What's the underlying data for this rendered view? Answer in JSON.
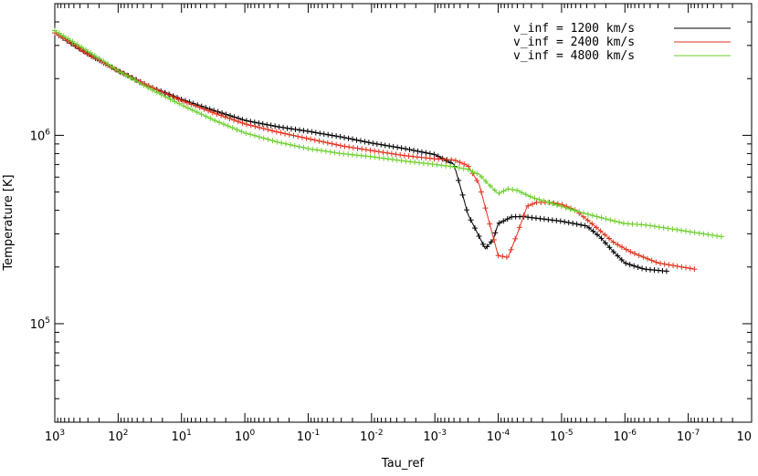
{
  "chart_data": {
    "type": "line",
    "title": "",
    "xlabel": "Tau_ref",
    "ylabel": "Temperature [K]",
    "x_scale": "log",
    "x_reversed": true,
    "y_scale": "log",
    "xlim": [
      1000,
      1e-08
    ],
    "ylim": [
      30000,
      5000000
    ],
    "grid": false,
    "legend_position": "top-right",
    "x_ticks": [
      {
        "base": "10",
        "exp": "3",
        "value": 1000
      },
      {
        "base": "10",
        "exp": "2",
        "value": 100
      },
      {
        "base": "10",
        "exp": "1",
        "value": 10
      },
      {
        "base": "10",
        "exp": "0",
        "value": 1
      },
      {
        "base": "10",
        "exp": "-1",
        "value": 0.1
      },
      {
        "base": "10",
        "exp": "-2",
        "value": 0.01
      },
      {
        "base": "10",
        "exp": "-3",
        "value": 0.001
      },
      {
        "base": "10",
        "exp": "-4",
        "value": 0.0001
      },
      {
        "base": "10",
        "exp": "-5",
        "value": 1e-05
      },
      {
        "base": "10",
        "exp": "-6",
        "value": 1e-06
      },
      {
        "base": "10",
        "exp": "-7",
        "value": 1e-07
      },
      {
        "base": "10",
        "exp": "",
        "value": 1e-08
      }
    ],
    "y_ticks": [
      {
        "base": "10",
        "exp": "5",
        "value": 100000
      },
      {
        "base": "10",
        "exp": "6",
        "value": 1000000
      }
    ],
    "series": [
      {
        "name": "v_inf  =  1200  km/s",
        "color": "#000000",
        "x": [
          1000,
          300,
          100,
          30,
          10,
          3,
          1,
          0.3,
          0.1,
          0.03,
          0.01,
          0.003,
          0.001,
          0.0005,
          0.0004,
          0.0003,
          0.0002,
          0.00016,
          0.00012,
          0.0001,
          6e-05,
          4e-05,
          2e-05,
          1e-05,
          4e-06,
          2.5e-06,
          1.5e-06,
          1e-06,
          5e-07,
          2.2e-07
        ],
        "y": [
          3500000,
          2700000,
          2200000,
          1800000,
          1550000,
          1350000,
          1200000,
          1110000,
          1050000,
          980000,
          910000,
          850000,
          790000,
          700000,
          540000,
          380000,
          290000,
          250000,
          280000,
          340000,
          370000,
          370000,
          360000,
          350000,
          330000,
          290000,
          240000,
          210000,
          195000,
          190000
        ]
      },
      {
        "name": "v_inf  =  2400  km/s",
        "color": "#e2321e",
        "x": [
          1000,
          300,
          100,
          30,
          10,
          3,
          1,
          0.3,
          0.1,
          0.03,
          0.01,
          0.003,
          0.001,
          0.0005,
          0.0003,
          0.0002,
          0.00014,
          0.0001,
          7e-05,
          5e-05,
          3.5e-05,
          2.5e-05,
          1.5e-05,
          1e-05,
          6e-06,
          3e-06,
          1.5e-06,
          8e-07,
          3e-07,
          8e-08
        ],
        "y": [
          3500000,
          2700000,
          2200000,
          1800000,
          1530000,
          1310000,
          1150000,
          1040000,
          960000,
          880000,
          830000,
          780000,
          750000,
          740000,
          690000,
          550000,
          350000,
          230000,
          225000,
          300000,
          420000,
          440000,
          440000,
          430000,
          400000,
          330000,
          270000,
          240000,
          210000,
          195000
        ]
      },
      {
        "name": "v_inf  =  4800  km/s",
        "color": "#6ccf2a",
        "x": [
          1000,
          300,
          100,
          30,
          10,
          3,
          1,
          0.3,
          0.1,
          0.03,
          0.01,
          0.003,
          0.001,
          0.0005,
          0.0003,
          0.00025,
          0.0002,
          0.00015,
          0.0001,
          7e-05,
          5e-05,
          3e-05,
          2e-05,
          1e-05,
          5e-06,
          2e-06,
          1e-06,
          5e-07,
          2e-07,
          3e-08
        ],
        "y": [
          3600000,
          2800000,
          2200000,
          1750000,
          1450000,
          1200000,
          1030000,
          920000,
          850000,
          800000,
          770000,
          730000,
          700000,
          680000,
          660000,
          640000,
          620000,
          560000,
          490000,
          520000,
          510000,
          470000,
          450000,
          420000,
          390000,
          360000,
          340000,
          335000,
          320000,
          290000
        ]
      }
    ]
  }
}
